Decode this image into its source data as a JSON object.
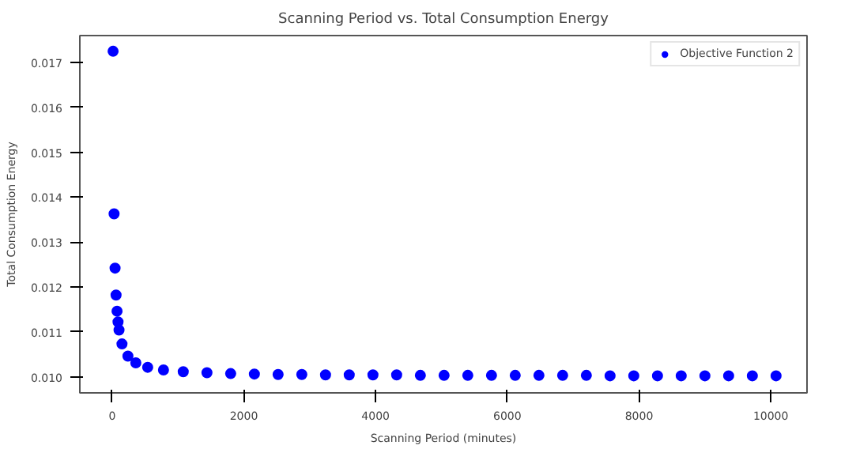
{
  "chart_data": {
    "type": "scatter",
    "title": "Scanning Period vs. Total Consumption Energy",
    "xlabel": "Scanning Period (minutes)",
    "ylabel": "Total Consumption Energy",
    "series": [
      {
        "name": "Objective Function 2",
        "color": "#0000ff",
        "x": [
          15,
          30,
          45,
          60,
          75,
          90,
          105,
          150,
          240,
          360,
          540,
          780,
          1080,
          1440,
          1800,
          2160,
          2520,
          2880,
          3240,
          3600,
          3960,
          4320,
          4680,
          5040,
          5400,
          5760,
          6120,
          6480,
          6840,
          7200,
          7560,
          7920,
          8280,
          8640,
          9000,
          9360,
          9720,
          10080
        ],
        "values": [
          0.01725,
          0.01363,
          0.01242,
          0.01182,
          0.01146,
          0.01122,
          0.01104,
          0.01073,
          0.01046,
          0.01031,
          0.01021,
          0.01015,
          0.01011,
          0.01009,
          0.01007,
          0.01006,
          0.01005,
          0.01005,
          0.01004,
          0.01004,
          0.01004,
          0.01004,
          0.01003,
          0.01003,
          0.01003,
          0.01003,
          0.01003,
          0.01003,
          0.01003,
          0.01003,
          0.01002,
          0.01002,
          0.01002,
          0.01002,
          0.01002,
          0.01002,
          0.01002,
          0.01002
        ]
      }
    ],
    "xlim": [
      -490,
      10550
    ],
    "ylim": [
      0.00964,
      0.0176
    ],
    "xticks": [
      0,
      2000,
      4000,
      6000,
      8000,
      10000
    ],
    "yticks": [
      {
        "value": 0.01,
        "label": "0.010"
      },
      {
        "value": 0.011,
        "label": "0.011"
      },
      {
        "value": 0.012,
        "label": "0.012"
      },
      {
        "value": 0.013,
        "label": "0.013"
      },
      {
        "value": 0.014,
        "label": "0.014"
      },
      {
        "value": 0.015,
        "label": "0.015"
      },
      {
        "value": 0.016,
        "label": "0.016"
      },
      {
        "value": 0.017,
        "label": "0.017"
      }
    ],
    "marker": "circle",
    "legend": "top right",
    "grid": false
  }
}
